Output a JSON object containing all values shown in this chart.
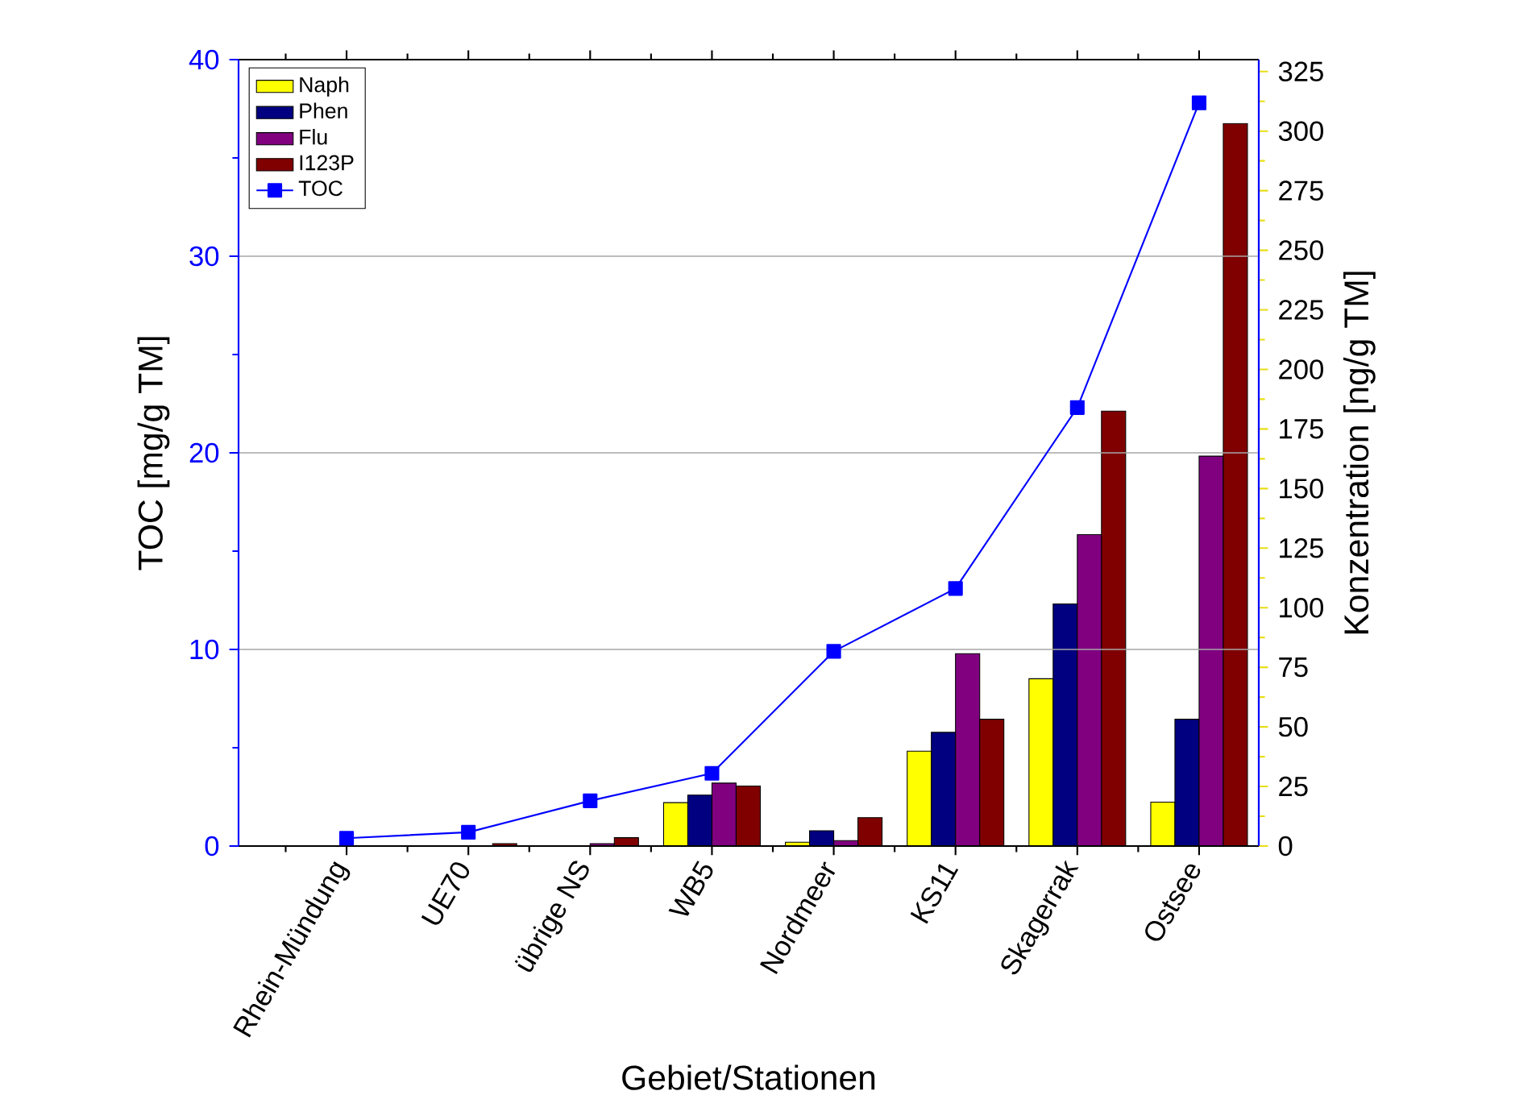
{
  "chart_data": {
    "type": "bar",
    "xlabel": "Gebiet/Stationen",
    "ylabel": "TOC [mg/g TM]",
    "y2label": "Konzentration [ng/g TM]",
    "categories": [
      "Rhein-Mündung",
      "UE70",
      "übrige NS",
      "WB5",
      "Nordmeer",
      "KS11",
      "Skagerrak",
      "Ostsee"
    ],
    "ylim": [
      0,
      40
    ],
    "yticks": [
      0,
      10,
      20,
      30,
      40
    ],
    "y2lim": [
      0,
      330
    ],
    "y2ticks": [
      0,
      25,
      50,
      75,
      100,
      125,
      150,
      175,
      200,
      225,
      250,
      275,
      300,
      325
    ],
    "grid": "y",
    "legend": "top left",
    "series": [
      {
        "name": "Naph",
        "color": "#ffff00",
        "axis": "y2",
        "values": [
          null,
          null,
          null,
          18.2,
          1.6,
          39.8,
          70.2,
          18.4
        ]
      },
      {
        "name": "Phen",
        "color": "#000080",
        "axis": "y2",
        "values": [
          null,
          null,
          null,
          21.4,
          6.4,
          47.7,
          101.6,
          53.2
        ]
      },
      {
        "name": "Flu",
        "color": "#800080",
        "axis": "y2",
        "values": [
          null,
          null,
          1,
          26.4,
          2.3,
          80.7,
          130.7,
          163.6
        ]
      },
      {
        "name": "I123P",
        "color": "#800000",
        "axis": "y2",
        "values": [
          null,
          1,
          3.5,
          25.2,
          11.9,
          53.2,
          182.5,
          303.2
        ]
      },
      {
        "name": "TOC",
        "color": "#0000ff",
        "axis": "y",
        "type": "line",
        "marker": "square",
        "line_style": "solid",
        "values": [
          0.4,
          0.7,
          2.3,
          3.7,
          9.9,
          13.1,
          22.3,
          37.8
        ]
      }
    ]
  }
}
